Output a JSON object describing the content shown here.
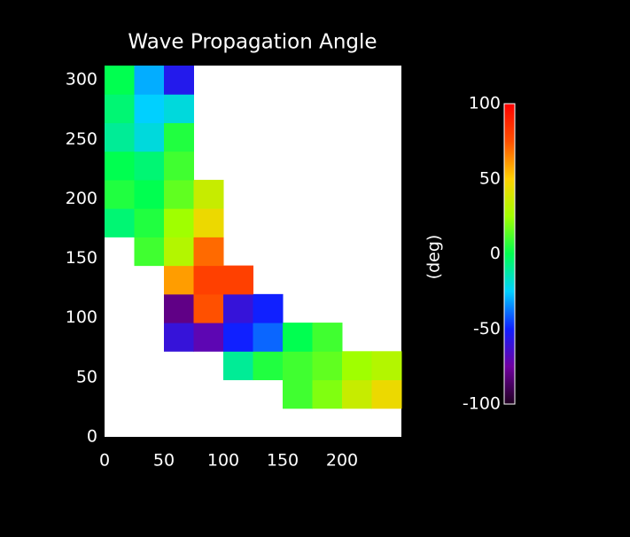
{
  "chart_data": {
    "type": "heatmap",
    "title": "Wave Propagation Angle",
    "x": [
      0,
      25,
      50,
      75,
      100,
      125,
      150,
      175,
      200,
      225,
      250
    ],
    "y": [
      0,
      24,
      48,
      72,
      96,
      120,
      144,
      168,
      192,
      216,
      240,
      264,
      288,
      312
    ],
    "values": [
      [
        null,
        null,
        null,
        null,
        null,
        null,
        null,
        null,
        null,
        null
      ],
      [
        null,
        null,
        null,
        null,
        null,
        null,
        10,
        20,
        35,
        45
      ],
      [
        null,
        null,
        null,
        null,
        -10,
        5,
        10,
        15,
        25,
        30
      ],
      [
        null,
        null,
        -60,
        -70,
        -50,
        -40,
        0,
        10,
        null,
        null
      ],
      [
        null,
        null,
        -80,
        75,
        -60,
        -50,
        null,
        null,
        null,
        null
      ],
      [
        null,
        null,
        60,
        80,
        80,
        null,
        null,
        null,
        null,
        null
      ],
      [
        null,
        10,
        30,
        70,
        null,
        null,
        null,
        null,
        null,
        null
      ],
      [
        -5,
        5,
        25,
        45,
        null,
        null,
        null,
        null,
        null,
        null
      ],
      [
        5,
        0,
        15,
        35,
        null,
        null,
        null,
        null,
        null,
        null
      ],
      [
        0,
        -5,
        10,
        null,
        null,
        null,
        null,
        null,
        null,
        null
      ],
      [
        -10,
        -20,
        5,
        null,
        null,
        null,
        null,
        null,
        null,
        null
      ],
      [
        -5,
        -25,
        -20,
        null,
        null,
        null,
        null,
        null,
        null,
        null
      ],
      [
        0,
        -30,
        -55,
        null,
        null,
        null,
        null,
        null,
        null,
        null
      ]
    ],
    "xlim": [
      0,
      250
    ],
    "ylim": [
      0,
      312
    ],
    "xticks": [
      0,
      50,
      100,
      150,
      200
    ],
    "yticks": [
      0,
      50,
      100,
      150,
      200,
      250,
      300
    ],
    "colorbar": {
      "label": "(deg)",
      "lim": [
        -100,
        100
      ],
      "ticks": [
        -100,
        -50,
        0,
        50,
        100
      ]
    },
    "colormap": [
      "#200020",
      "#7000a0",
      "#1020ff",
      "#00d0ff",
      "#00ff50",
      "#a0ff00",
      "#ffd000",
      "#ff5000",
      "#ff0000"
    ]
  }
}
